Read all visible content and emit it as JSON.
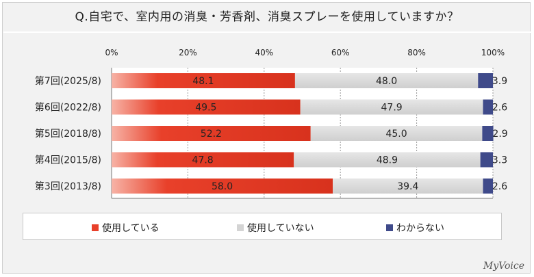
{
  "title": "Q.自宅で、室内用の消臭・芳香剤、消臭スプレーを使用していますか？",
  "brand": "MyVoice",
  "colors": {
    "using": "#e8402a",
    "not_using": "#d4d4d4",
    "unknown": "#3f4a8a"
  },
  "chart_data": {
    "type": "bar",
    "orientation": "horizontal",
    "stacked": "percent",
    "title": "Q.自宅で、室内用の消臭・芳香剤、消臭スプレーを使用していますか？",
    "categories": [
      "第7回(2025/8)",
      "第6回(2022/8)",
      "第5回(2018/8)",
      "第4回(2015/8)",
      "第3回(2013/8)"
    ],
    "series": [
      {
        "name": "使用している",
        "values": [
          48.1,
          49.5,
          52.2,
          47.8,
          58.0
        ]
      },
      {
        "name": "使用していない",
        "values": [
          48.0,
          47.9,
          45.0,
          48.9,
          39.4
        ]
      },
      {
        "name": "わからない",
        "values": [
          3.9,
          2.6,
          2.9,
          3.3,
          2.6
        ]
      }
    ],
    "x_ticks": [
      "0%",
      "20%",
      "40%",
      "60%",
      "80%",
      "100%"
    ],
    "xlim": [
      0,
      100
    ],
    "grid": true,
    "legend_position": "bottom"
  }
}
